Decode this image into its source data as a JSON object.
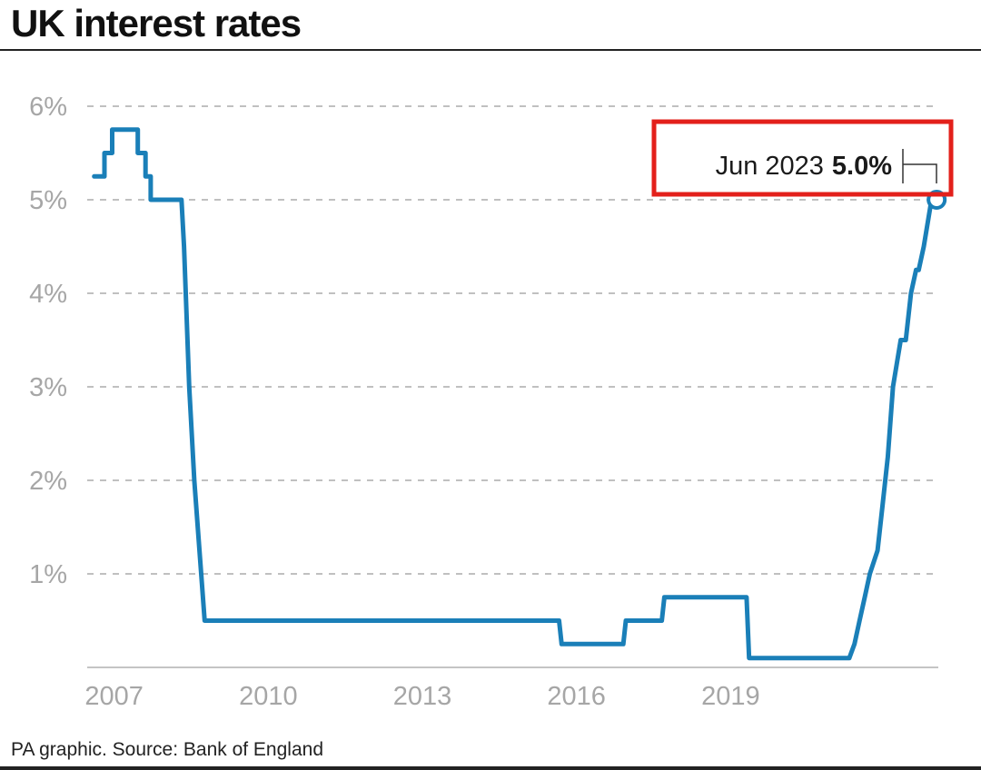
{
  "header": {
    "title": "UK interest rates"
  },
  "footer": {
    "source": "PA graphic. Source: Bank of England"
  },
  "annotation": {
    "label": "Jun 2023",
    "value": "5.0%",
    "highlight_color": "#e3201b"
  },
  "colors": {
    "line": "#1a7fb8",
    "grid": "#9a9a9a",
    "tick_text": "#a6a6a6"
  },
  "chart_data": {
    "type": "line",
    "title": "UK interest rates",
    "xlabel": "",
    "ylabel": "",
    "xlim": [
      2006.9,
      2023.45
    ],
    "ylim": [
      0,
      6
    ],
    "y_ticks": [
      1,
      2,
      3,
      4,
      5,
      6
    ],
    "y_tick_labels": [
      "1%",
      "2%",
      "3%",
      "4%",
      "5%",
      "6%"
    ],
    "x_ticks": [
      2007,
      2010,
      2013,
      2016,
      2019
    ],
    "x_tick_labels": [
      "2007",
      "2010",
      "2013",
      "2016",
      "2019"
    ],
    "grid": true,
    "series": [
      {
        "x": [
          2007.0,
          2007.2,
          2007.2,
          2007.35,
          2007.35,
          2007.5,
          2007.5,
          2007.85,
          2007.85,
          2008.0,
          2008.0,
          2008.1,
          2008.1,
          2008.2,
          2008.2,
          2008.7,
          2008.75,
          2008.85,
          2008.95,
          2009.15,
          2009.15,
          2016.05,
          2016.1,
          2016.1,
          2017.3,
          2017.35,
          2017.35,
          2018.05,
          2018.1,
          2018.1,
          2019.7,
          2019.75,
          2019.75,
          2021.6,
          2021.7,
          2021.8,
          2021.9,
          2022.0,
          2022.1,
          2022.25,
          2022.35,
          2022.45,
          2022.55,
          2022.7,
          2022.8,
          2022.9,
          2023.0,
          2023.05,
          2023.15,
          2023.3,
          2023.4
        ],
        "y": [
          5.25,
          5.25,
          5.5,
          5.5,
          5.75,
          5.75,
          5.75,
          5.75,
          5.5,
          5.5,
          5.25,
          5.25,
          5.0,
          5.0,
          5.0,
          5.0,
          4.5,
          3.0,
          2.0,
          0.5,
          0.5,
          0.5,
          0.25,
          0.25,
          0.25,
          0.5,
          0.5,
          0.5,
          0.75,
          0.75,
          0.75,
          0.1,
          0.1,
          0.1,
          0.1,
          0.25,
          0.5,
          0.75,
          1.0,
          1.25,
          1.75,
          2.25,
          3.0,
          3.5,
          3.5,
          4.0,
          4.25,
          4.25,
          4.5,
          5.0,
          5.0
        ]
      }
    ],
    "end_point": {
      "x": 2023.4,
      "y": 5.0
    }
  }
}
